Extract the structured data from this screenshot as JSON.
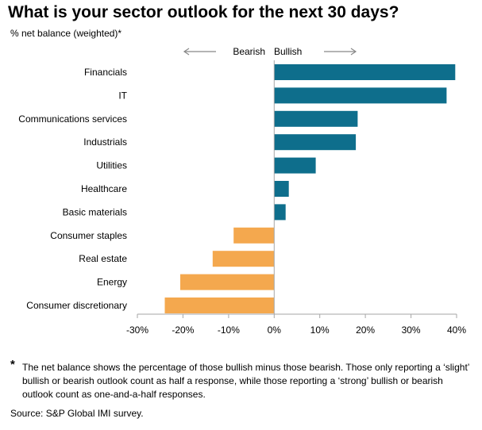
{
  "title": "What is your sector outlook for the next 30 days?",
  "subtitle": "% net balance (weighted)*",
  "direction_labels": {
    "bearish": "Bearish",
    "bullish": "Bullish"
  },
  "footnote": {
    "marker": "*",
    "text": "The net balance shows the percentage of those bullish minus those bearish. Those only reporting a ‘slight’ bullish or bearish outlook count as half a response, while those reporting a ‘strong’ bullish or bearish outlook count as one-and-a-half responses."
  },
  "source": "Source: S&P Global IMI survey.",
  "colors": {
    "positive": "#0e6e8c",
    "negative": "#f4a84e",
    "arrow": "#888888"
  },
  "chart_data": {
    "type": "bar",
    "orientation": "horizontal",
    "categories": [
      "Financials",
      "IT",
      "Communications services",
      "Industrials",
      "Utilities",
      "Healthcare",
      "Basic materials",
      "Consumer staples",
      "Real estate",
      "Energy",
      "Consumer discretionary"
    ],
    "values": [
      39.7,
      37.8,
      18.3,
      17.9,
      9.1,
      3.2,
      2.5,
      -8.9,
      -13.5,
      -20.6,
      -24.0
    ],
    "xlim": [
      -30,
      40
    ],
    "xticks": [
      -30,
      -20,
      -10,
      0,
      10,
      20,
      30,
      40
    ],
    "xtick_labels": [
      "-30%",
      "-20%",
      "-10%",
      "0%",
      "10%",
      "20%",
      "30%",
      "40%"
    ],
    "grid": false
  }
}
